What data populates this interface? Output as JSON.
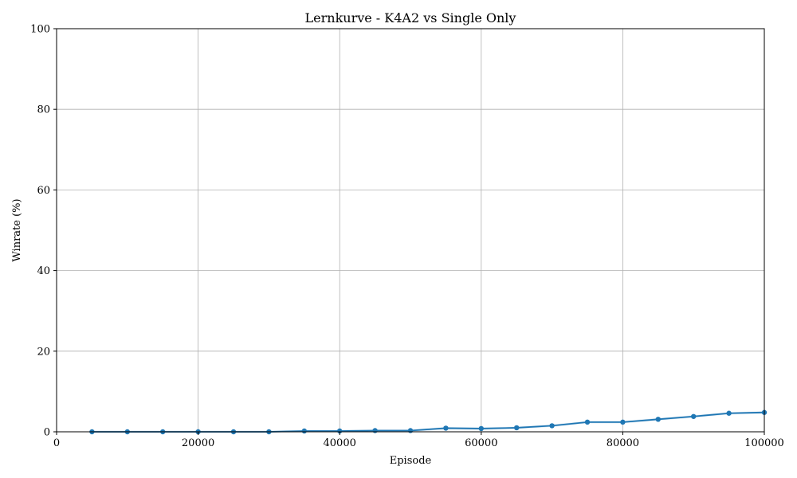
{
  "chart_data": {
    "type": "line",
    "title": "Lernkurve - K4A2 vs Single Only",
    "xlabel": "Episode",
    "ylabel": "Winrate (%)",
    "xlim": [
      0,
      100000
    ],
    "ylim": [
      0,
      100
    ],
    "x_ticks": [
      0,
      20000,
      40000,
      60000,
      80000,
      100000
    ],
    "y_ticks": [
      0,
      20,
      40,
      60,
      80,
      100
    ],
    "grid": true,
    "series": [
      {
        "color": "#1f77b4",
        "x": [
          5000,
          10000,
          15000,
          20000,
          25000,
          30000,
          35000,
          40000,
          45000,
          50000,
          55000,
          60000,
          65000,
          70000,
          75000,
          80000,
          85000,
          90000,
          95000,
          100000
        ],
        "y": [
          0.0,
          0.0,
          0.0,
          0.0,
          0.0,
          0.0,
          0.2,
          0.2,
          0.3,
          0.3,
          0.9,
          0.8,
          1.0,
          1.5,
          2.4,
          2.4,
          3.1,
          3.8,
          4.6,
          4.8
        ]
      }
    ]
  }
}
